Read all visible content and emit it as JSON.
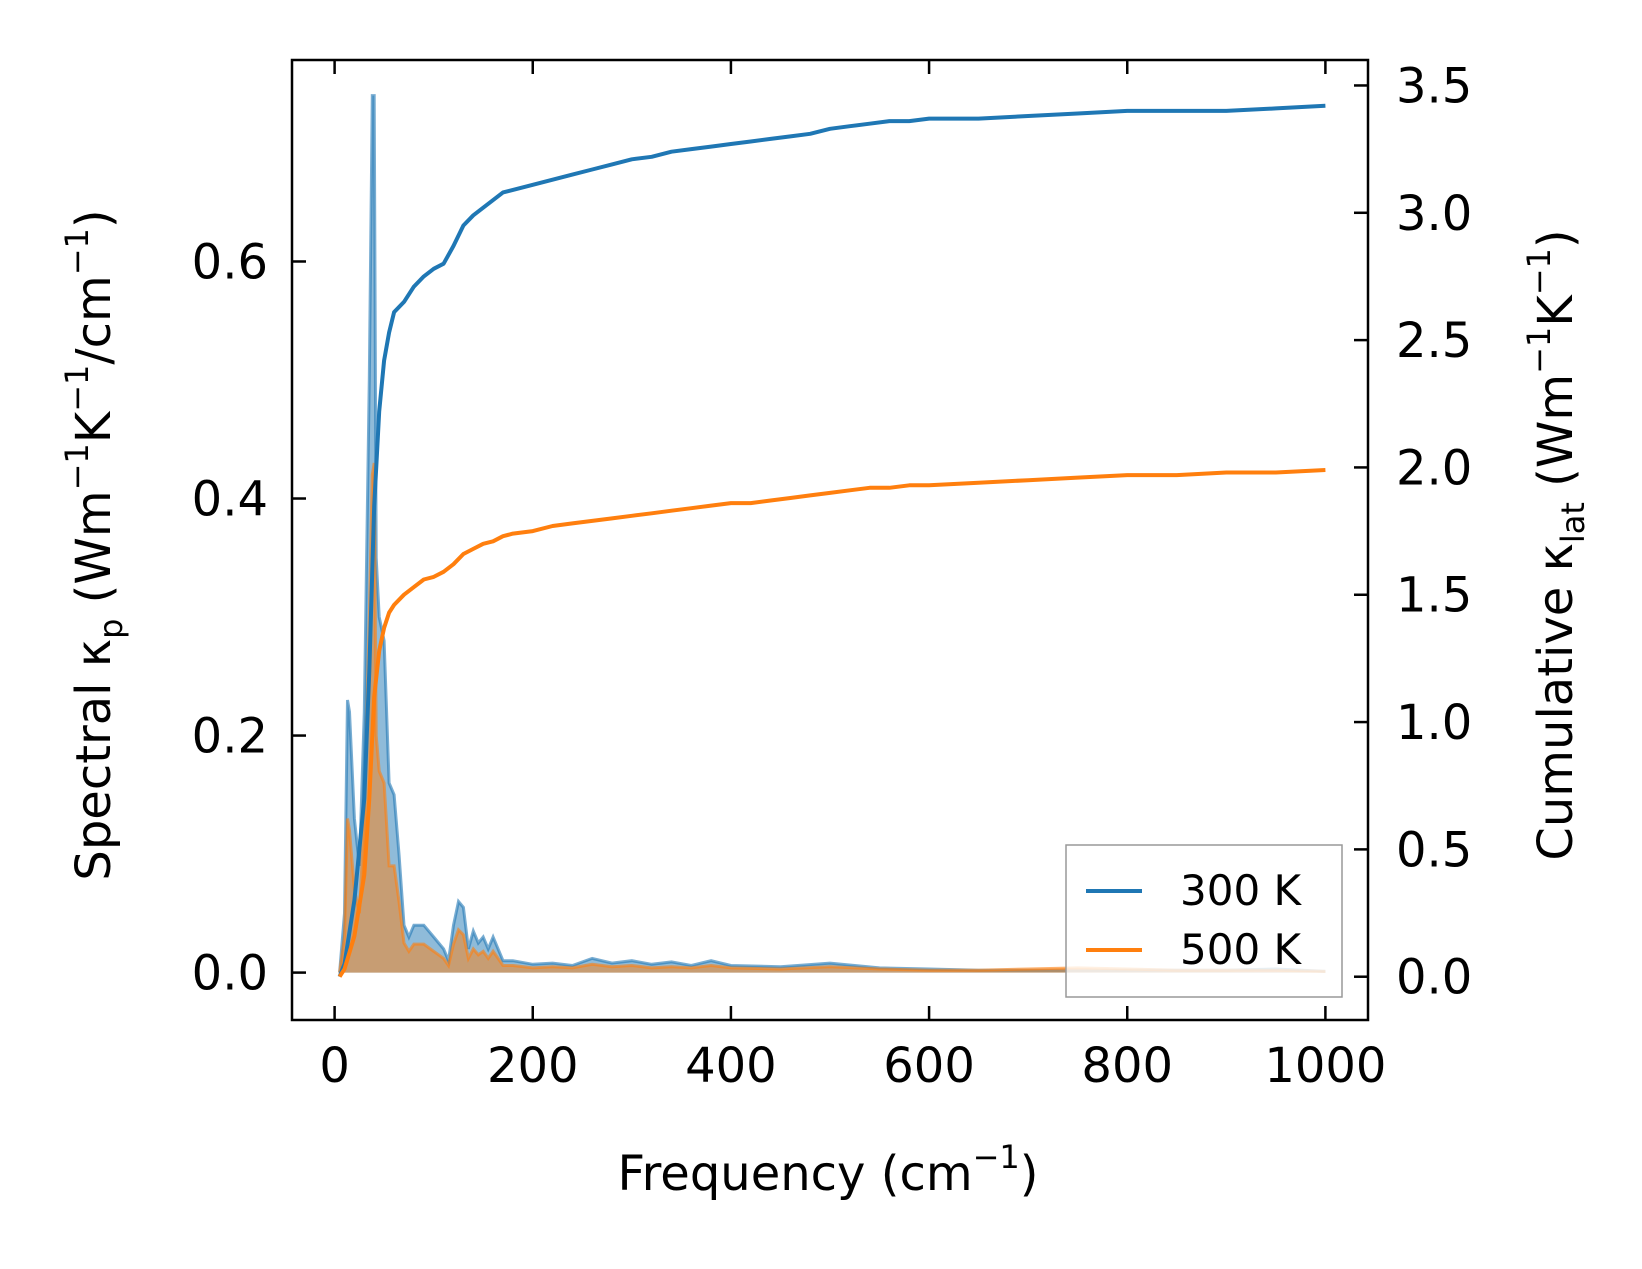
{
  "chart_data": {
    "type": "line",
    "x_axis": {
      "label_prefix": "Frequency (cm",
      "label_sup": "−1",
      "label_suffix": ")",
      "range": [
        -43,
        1043
      ],
      "ticks": [
        0,
        200,
        400,
        600,
        800,
        1000
      ],
      "tick_labels": [
        "0",
        "200",
        "400",
        "600",
        "800",
        "1000"
      ]
    },
    "y_left": {
      "label_a": "Spectral κ",
      "label_a_sub": "p",
      "label_b": " (Wm",
      "label_b_sup": "−1",
      "label_c": "K",
      "label_c_sup": "−1",
      "label_d": "/cm",
      "label_d_sup": "−1",
      "label_e": ")",
      "range": [
        -0.04,
        0.77
      ],
      "ticks": [
        0.0,
        0.2,
        0.4,
        0.6
      ],
      "tick_labels": [
        "0.0",
        "0.2",
        "0.4",
        "0.6"
      ]
    },
    "y_right": {
      "label_a": "Cumulative κ",
      "label_a_sub": "lat",
      "label_b": " (Wm",
      "label_b_sup": "−1",
      "label_c": "K",
      "label_c_sup": "−1",
      "label_d": ")",
      "range": [
        -0.17,
        3.6
      ],
      "ticks": [
        0.0,
        0.5,
        1.0,
        1.5,
        2.0,
        2.5,
        3.0,
        3.5
      ],
      "tick_labels": [
        "0.0",
        "0.5",
        "1.0",
        "1.5",
        "2.0",
        "2.5",
        "3.0",
        "3.5"
      ]
    },
    "legend": {
      "position": "lower-right",
      "entries": [
        "300 K",
        "500 K"
      ]
    },
    "colors": {
      "series_300K": "#1f77b4",
      "series_500K": "#ff7f0e"
    },
    "series": [
      {
        "name": "300 K",
        "axis": "right",
        "kind": "cumulative",
        "x": [
          5,
          10,
          20,
          30,
          35,
          40,
          45,
          50,
          55,
          60,
          70,
          80,
          90,
          100,
          110,
          120,
          130,
          140,
          150,
          160,
          170,
          180,
          200,
          220,
          240,
          260,
          280,
          300,
          320,
          340,
          360,
          380,
          400,
          420,
          440,
          460,
          480,
          500,
          520,
          540,
          560,
          580,
          600,
          650,
          700,
          750,
          800,
          850,
          900,
          950,
          1000
        ],
        "y": [
          0.0,
          0.05,
          0.3,
          0.7,
          1.2,
          1.85,
          2.22,
          2.42,
          2.53,
          2.61,
          2.65,
          2.71,
          2.75,
          2.78,
          2.8,
          2.87,
          2.95,
          2.99,
          3.02,
          3.05,
          3.08,
          3.09,
          3.11,
          3.13,
          3.15,
          3.17,
          3.19,
          3.21,
          3.22,
          3.24,
          3.25,
          3.26,
          3.27,
          3.28,
          3.29,
          3.3,
          3.31,
          3.33,
          3.34,
          3.35,
          3.36,
          3.36,
          3.37,
          3.37,
          3.38,
          3.39,
          3.4,
          3.4,
          3.4,
          3.41,
          3.42
        ]
      },
      {
        "name": "500 K",
        "axis": "right",
        "kind": "cumulative",
        "x": [
          5,
          10,
          20,
          30,
          35,
          40,
          45,
          50,
          55,
          60,
          70,
          80,
          90,
          100,
          110,
          120,
          130,
          140,
          150,
          160,
          170,
          180,
          200,
          220,
          240,
          260,
          280,
          300,
          320,
          340,
          360,
          380,
          400,
          420,
          440,
          460,
          480,
          500,
          520,
          540,
          560,
          580,
          600,
          650,
          700,
          750,
          800,
          850,
          900,
          950,
          1000
        ],
        "y": [
          0.0,
          0.03,
          0.16,
          0.4,
          0.7,
          1.1,
          1.28,
          1.37,
          1.43,
          1.46,
          1.5,
          1.53,
          1.56,
          1.57,
          1.59,
          1.62,
          1.66,
          1.68,
          1.7,
          1.71,
          1.73,
          1.74,
          1.75,
          1.77,
          1.78,
          1.79,
          1.8,
          1.81,
          1.82,
          1.83,
          1.84,
          1.85,
          1.86,
          1.86,
          1.87,
          1.88,
          1.89,
          1.9,
          1.91,
          1.92,
          1.92,
          1.93,
          1.93,
          1.94,
          1.95,
          1.96,
          1.97,
          1.97,
          1.98,
          1.98,
          1.99
        ]
      },
      {
        "name": "300 K",
        "axis": "left",
        "kind": "spectral",
        "x": [
          5,
          10,
          13,
          15,
          20,
          25,
          30,
          35,
          38,
          40,
          42,
          45,
          50,
          55,
          60,
          65,
          70,
          75,
          80,
          90,
          100,
          110,
          115,
          120,
          125,
          130,
          135,
          140,
          145,
          150,
          155,
          160,
          165,
          170,
          180,
          200,
          220,
          240,
          260,
          280,
          300,
          320,
          340,
          360,
          380,
          400,
          450,
          500,
          550,
          600,
          650,
          700,
          750,
          800,
          850,
          900,
          950,
          1000
        ],
        "y": [
          0.0,
          0.05,
          0.23,
          0.22,
          0.13,
          0.09,
          0.22,
          0.5,
          0.74,
          0.74,
          0.35,
          0.3,
          0.28,
          0.16,
          0.15,
          0.1,
          0.04,
          0.03,
          0.04,
          0.04,
          0.03,
          0.02,
          0.01,
          0.04,
          0.06,
          0.055,
          0.02,
          0.035,
          0.025,
          0.03,
          0.02,
          0.03,
          0.02,
          0.01,
          0.01,
          0.007,
          0.008,
          0.006,
          0.012,
          0.008,
          0.01,
          0.007,
          0.009,
          0.006,
          0.01,
          0.006,
          0.005,
          0.008,
          0.004,
          0.003,
          0.002,
          0.002,
          0.002,
          0.002,
          0.002,
          0.002,
          0.003,
          0.001
        ]
      },
      {
        "name": "500 K",
        "axis": "left",
        "kind": "spectral",
        "x": [
          5,
          10,
          13,
          15,
          20,
          25,
          30,
          35,
          38,
          40,
          42,
          45,
          50,
          55,
          60,
          65,
          70,
          75,
          80,
          90,
          100,
          110,
          115,
          120,
          125,
          130,
          135,
          140,
          145,
          150,
          155,
          160,
          165,
          170,
          180,
          200,
          220,
          240,
          260,
          280,
          300,
          320,
          340,
          360,
          380,
          400,
          450,
          500,
          550,
          600,
          650,
          700,
          750,
          800,
          850,
          900,
          950,
          1000
        ],
        "y": [
          0.0,
          0.03,
          0.13,
          0.12,
          0.07,
          0.05,
          0.13,
          0.3,
          0.42,
          0.43,
          0.2,
          0.17,
          0.16,
          0.09,
          0.09,
          0.06,
          0.025,
          0.018,
          0.024,
          0.024,
          0.018,
          0.012,
          0.006,
          0.024,
          0.036,
          0.032,
          0.012,
          0.02,
          0.015,
          0.018,
          0.012,
          0.018,
          0.012,
          0.006,
          0.006,
          0.004,
          0.005,
          0.004,
          0.007,
          0.005,
          0.006,
          0.004,
          0.005,
          0.004,
          0.006,
          0.004,
          0.003,
          0.005,
          0.003,
          0.002,
          0.002,
          0.003,
          0.004,
          0.003,
          0.002,
          0.002,
          0.002,
          0.001
        ]
      }
    ]
  }
}
